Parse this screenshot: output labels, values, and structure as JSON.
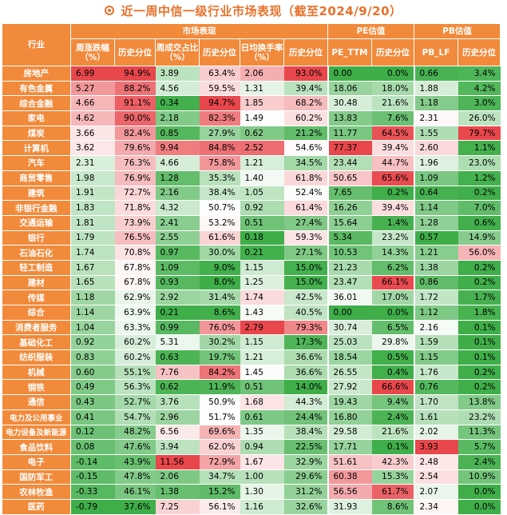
{
  "title": "近一周中信一级行业市场表现（截至2024/9/20）",
  "colors": {
    "header_bg": "#f28a3b",
    "title": "#e8712a",
    "high": "#e8474c",
    "low": "#3fae49"
  },
  "chart_data": {
    "type": "table",
    "title": "近一周中信一级行业市场表现（截至2024/9/20）",
    "group_headers": [
      "市场表现",
      "PE估值",
      "PB估值"
    ],
    "row_header": "行业",
    "columns": [
      "周涨跌幅（%）",
      "历史分位",
      "周成交占比（%）",
      "历史分位",
      "日均换手率（%）",
      "历史分位",
      "PE_TTM",
      "历史分位",
      "PB_LF",
      "历史分位"
    ],
    "rows": [
      {
        "industry": "房地产",
        "values": [
          "6.99",
          "94.9%",
          "3.89",
          "63.4%",
          "2.06",
          "93.0%",
          "0.00",
          "0.0%",
          "0.66",
          "3.4%"
        ]
      },
      {
        "industry": "有色金属",
        "values": [
          "5.27",
          "88.2%",
          "4.56",
          "59.5%",
          "1.31",
          "39.4%",
          "18.06",
          "18.0%",
          "1.88",
          "4.2%"
        ]
      },
      {
        "industry": "综合金融",
        "values": [
          "4.66",
          "91.1%",
          "0.34",
          "94.7%",
          "1.85",
          "68.2%",
          "30.48",
          "21.6%",
          "1.18",
          "3.0%"
        ]
      },
      {
        "industry": "家电",
        "values": [
          "4.62",
          "90.0%",
          "2.18",
          "82.3%",
          "1.49",
          "60.2%",
          "13.83",
          "7.6%",
          "2.31",
          "26.0%"
        ]
      },
      {
        "industry": "煤炭",
        "values": [
          "3.66",
          "82.4%",
          "0.85",
          "27.9%",
          "0.62",
          "21.2%",
          "11.77",
          "64.5%",
          "1.55",
          "79.7%"
        ]
      },
      {
        "industry": "计算机",
        "values": [
          "3.62",
          "79.6%",
          "9.94",
          "84.8%",
          "2.52",
          "54.6%",
          "77.37",
          "39.4%",
          "2.60",
          "1.1%"
        ]
      },
      {
        "industry": "汽车",
        "values": [
          "2.31",
          "76.3%",
          "4.66",
          "75.8%",
          "1.21",
          "34.5%",
          "23.44",
          "44.7%",
          "1.96",
          "23.0%"
        ]
      },
      {
        "industry": "商贸零售",
        "values": [
          "1.98",
          "76.9%",
          "1.28",
          "35.3%",
          "1.40",
          "61.8%",
          "50.65",
          "65.6%",
          "1.09",
          "1.2%"
        ]
      },
      {
        "industry": "建筑",
        "values": [
          "1.91",
          "72.7%",
          "2.16",
          "38.4%",
          "1.05",
          "52.4%",
          "7.65",
          "0.2%",
          "0.64",
          "0.2%"
        ]
      },
      {
        "industry": "非银行金融",
        "values": [
          "1.83",
          "71.8%",
          "4.32",
          "50.7%",
          "0.92",
          "61.4%",
          "16.26",
          "39.4%",
          "1.14",
          "7.0%"
        ]
      },
      {
        "industry": "交通运输",
        "values": [
          "1.81",
          "73.9%",
          "2.41",
          "53.2%",
          "0.51",
          "27.4%",
          "15.64",
          "1.4%",
          "1.28",
          "0.6%"
        ]
      },
      {
        "industry": "银行",
        "values": [
          "1.79",
          "76.5%",
          "2.55",
          "61.6%",
          "0.18",
          "59.3%",
          "5.34",
          "23.2%",
          "0.57",
          "14.9%"
        ]
      },
      {
        "industry": "石油石化",
        "values": [
          "1.74",
          "70.8%",
          "0.97",
          "30.0%",
          "0.21",
          "27.1%",
          "10.53",
          "14.3%",
          "1.21",
          "56.0%"
        ]
      },
      {
        "industry": "轻工制造",
        "values": [
          "1.67",
          "67.8%",
          "1.09",
          "9.0%",
          "1.15",
          "15.0%",
          "21.23",
          "6.2%",
          "1.38",
          "0.2%"
        ]
      },
      {
        "industry": "建材",
        "values": [
          "1.65",
          "67.8%",
          "0.93",
          "8.0%",
          "1.25",
          "15.0%",
          "23.47",
          "66.1%",
          "0.86",
          "0.2%"
        ]
      },
      {
        "industry": "传媒",
        "values": [
          "1.18",
          "62.9%",
          "2.92",
          "31.4%",
          "1.74",
          "42.5%",
          "36.01",
          "17.0%",
          "1.72",
          "1.7%"
        ]
      },
      {
        "industry": "综合",
        "values": [
          "1.14",
          "63.9%",
          "0.21",
          "8.6%",
          "1.43",
          "40.5%",
          "0.00",
          "0.0%",
          "1.12",
          "1.8%"
        ]
      },
      {
        "industry": "消费者服务",
        "values": [
          "1.04",
          "63.3%",
          "0.99",
          "76.0%",
          "2.79",
          "79.3%",
          "30.74",
          "6.5%",
          "2.16",
          "0.1%"
        ]
      },
      {
        "industry": "基础化工",
        "values": [
          "0.92",
          "60.2%",
          "5.31",
          "30.2%",
          "1.15",
          "17.3%",
          "25.03",
          "29.8%",
          "1.59",
          "0.1%"
        ]
      },
      {
        "industry": "纺织服装",
        "values": [
          "0.83",
          "60.2%",
          "0.63",
          "19.7%",
          "1.21",
          "36.6%",
          "18.54",
          "0.5%",
          "1.15",
          "0.1%"
        ]
      },
      {
        "industry": "机械",
        "values": [
          "0.60",
          "55.1%",
          "7.76",
          "84.2%",
          "1.45",
          "36.6%",
          "26.55",
          "0.4%",
          "1.76",
          "0.2%"
        ]
      },
      {
        "industry": "钢铁",
        "values": [
          "0.49",
          "56.3%",
          "0.62",
          "11.9%",
          "0.51",
          "14.0%",
          "27.92",
          "66.6%",
          "0.76",
          "0.2%"
        ]
      },
      {
        "industry": "通信",
        "values": [
          "0.43",
          "52.7%",
          "3.76",
          "50.9%",
          "1.68",
          "44.3%",
          "19.43",
          "9.4%",
          "1.70",
          "13.8%"
        ]
      },
      {
        "industry": "电力及公用事业",
        "values": [
          "0.41",
          "54.7%",
          "2.96",
          "51.7%",
          "0.61",
          "24.4%",
          "16.80",
          "2.4%",
          "1.61",
          "23.2%"
        ]
      },
      {
        "industry": "电力设备及新能源",
        "values": [
          "0.12",
          "48.2%",
          "6.56",
          "69.6%",
          "1.35",
          "38.4%",
          "29.58",
          "21.6%",
          "2.02",
          "11.3%"
        ]
      },
      {
        "industry": "食品饮料",
        "values": [
          "0.08",
          "47.6%",
          "3.94",
          "62.0%",
          "0.94",
          "22.5%",
          "17.71",
          "0.1%",
          "3.93",
          "5.7%"
        ]
      },
      {
        "industry": "电子",
        "values": [
          "-0.14",
          "43.9%",
          "11.56",
          "72.9%",
          "1.67",
          "32.9%",
          "51.61",
          "42.3%",
          "2.48",
          "2.4%"
        ]
      },
      {
        "industry": "国防军工",
        "values": [
          "-0.15",
          "47.8%",
          "2.06",
          "34.7%",
          "1.00",
          "29.6%",
          "60.38",
          "15.3%",
          "2.54",
          "10.9%"
        ]
      },
      {
        "industry": "农林牧渔",
        "values": [
          "-0.33",
          "46.1%",
          "1.38",
          "15.2%",
          "1.30",
          "31.2%",
          "56.56",
          "61.7%",
          "2.07",
          "0.0%"
        ]
      },
      {
        "industry": "医药",
        "values": [
          "-0.79",
          "37.6%",
          "7.25",
          "56.1%",
          "1.16",
          "32.6%",
          "31.93",
          "8.6%",
          "2.34",
          "0.0%"
        ]
      }
    ]
  }
}
